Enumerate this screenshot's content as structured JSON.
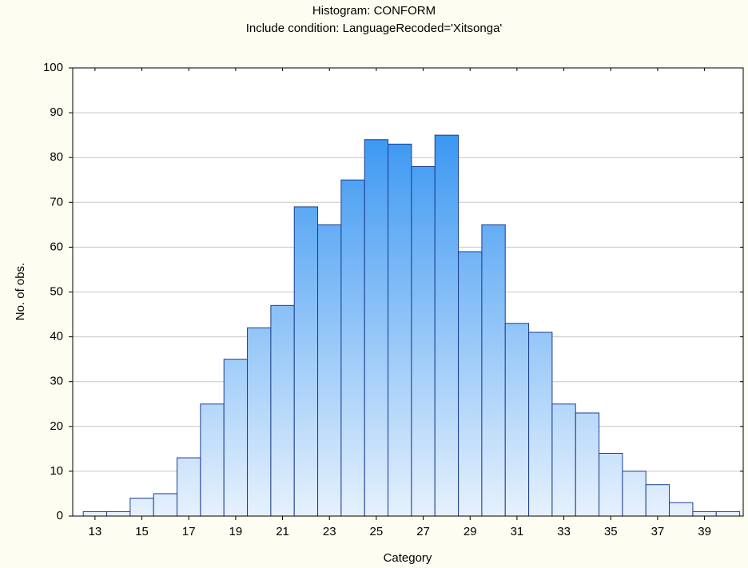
{
  "chart_data": {
    "type": "histogram",
    "title": "Histogram: CONFORM",
    "subtitle": "Include condition: LanguageRecoded='Xitsonga'",
    "x_label": "Category",
    "y_label": "No. of obs.",
    "bins": [
      12.5,
      13.5,
      14.5,
      15.5,
      16.5,
      17.5,
      18.5,
      19.5,
      20.5,
      21.5,
      22.5,
      23.5,
      24.5,
      25.5,
      26.5,
      27.5,
      28.5,
      29.5,
      30.5,
      31.5,
      32.5,
      33.5,
      34.5,
      35.5,
      36.5,
      37.5,
      38.5,
      39.5,
      40.5
    ],
    "values": [
      1,
      1,
      4,
      5,
      13,
      25,
      35,
      42,
      47,
      69,
      65,
      75,
      84,
      83,
      78,
      85,
      59,
      65,
      43,
      41,
      25,
      23,
      14,
      10,
      7,
      3,
      1,
      1
    ],
    "color": "#1e88f0",
    "xlim": [
      12.05,
      40.65
    ],
    "xticks": [
      13,
      15,
      17,
      19,
      21,
      23,
      25,
      27,
      29,
      31,
      33,
      35,
      37,
      39
    ],
    "ylim": [
      0,
      100
    ],
    "yticks": [
      0,
      10,
      20,
      30,
      40,
      50,
      60,
      70,
      80,
      90,
      100
    ],
    "grid": true
  }
}
